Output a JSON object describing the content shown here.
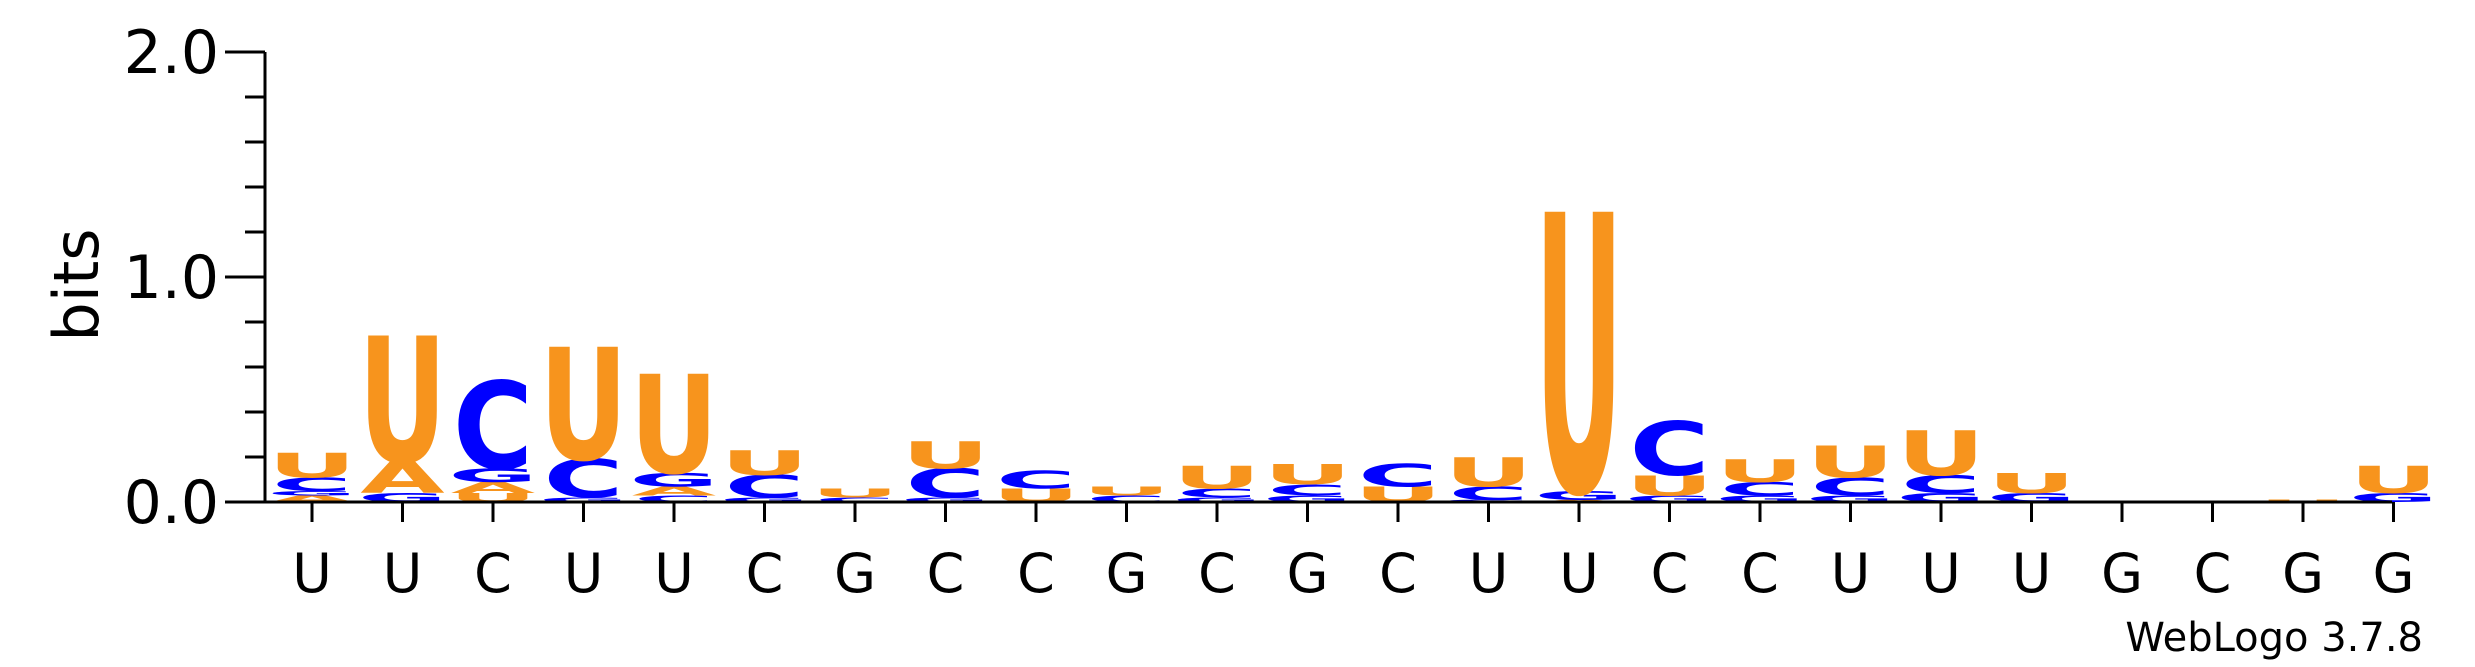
{
  "chart_data": {
    "type": "sequence-logo",
    "ylabel": "bits",
    "ylim": [
      0,
      2.0
    ],
    "yticks": [
      "0.0",
      "1.0",
      "2.0"
    ],
    "x_labels": [
      "U",
      "U",
      "C",
      "U",
      "U",
      "C",
      "G",
      "C",
      "C",
      "G",
      "C",
      "G",
      "C",
      "U",
      "U",
      "C",
      "C",
      "U",
      "U",
      "U",
      "G",
      "C",
      "G",
      "G"
    ],
    "footer": "WebLogo 3.7.8",
    "colors": {
      "U": "#f7941d",
      "A": "#f7941d",
      "C": "#0000ff",
      "G": "#0000ff"
    },
    "stacks": [
      [
        {
          "l": "A",
          "h": 0.03
        },
        {
          "l": "G",
          "h": 0.02
        },
        {
          "l": "C",
          "h": 0.06
        },
        {
          "l": "U",
          "h": 0.11
        }
      ],
      [
        {
          "l": "G",
          "h": 0.04
        },
        {
          "l": "A",
          "h": 0.14
        },
        {
          "l": "U",
          "h": 0.56
        }
      ],
      [
        {
          "l": "U",
          "h": 0.04
        },
        {
          "l": "A",
          "h": 0.05
        },
        {
          "l": "G",
          "h": 0.06
        },
        {
          "l": "C",
          "h": 0.39
        }
      ],
      [
        {
          "l": "G",
          "h": 0.02
        },
        {
          "l": "C",
          "h": 0.17
        },
        {
          "l": "U",
          "h": 0.5
        }
      ],
      [
        {
          "l": "C",
          "h": 0.03
        },
        {
          "l": "A",
          "h": 0.04
        },
        {
          "l": "G",
          "h": 0.06
        },
        {
          "l": "U",
          "h": 0.44
        }
      ],
      [
        {
          "l": "G",
          "h": 0.02
        },
        {
          "l": "C",
          "h": 0.1
        },
        {
          "l": "U",
          "h": 0.11
        }
      ],
      [
        {
          "l": "C",
          "h": 0.02
        },
        {
          "l": "U",
          "h": 0.04
        }
      ],
      [
        {
          "l": "G",
          "h": 0.02
        },
        {
          "l": "C",
          "h": 0.13
        },
        {
          "l": "U",
          "h": 0.12
        }
      ],
      [
        {
          "l": "U",
          "h": 0.06
        },
        {
          "l": "C",
          "h": 0.08
        }
      ],
      [
        {
          "l": "C",
          "h": 0.03
        },
        {
          "l": "U",
          "h": 0.04
        }
      ],
      [
        {
          "l": "G",
          "h": 0.02
        },
        {
          "l": "C",
          "h": 0.04
        },
        {
          "l": "U",
          "h": 0.1
        }
      ],
      [
        {
          "l": "G",
          "h": 0.03
        },
        {
          "l": "C",
          "h": 0.05
        },
        {
          "l": "U",
          "h": 0.09
        }
      ],
      [
        {
          "l": "U",
          "h": 0.07
        },
        {
          "l": "C",
          "h": 0.1
        }
      ],
      [
        {
          "l": "G",
          "h": 0.01
        },
        {
          "l": "C",
          "h": 0.06
        },
        {
          "l": "U",
          "h": 0.13
        }
      ],
      [
        {
          "l": "A",
          "h": 0.01
        },
        {
          "l": "G",
          "h": 0.04
        },
        {
          "l": "U",
          "h": 1.24
        }
      ],
      [
        {
          "l": "G",
          "h": 0.03
        },
        {
          "l": "U",
          "h": 0.09
        },
        {
          "l": "C",
          "h": 0.24
        }
      ],
      [
        {
          "l": "G",
          "h": 0.03
        },
        {
          "l": "C",
          "h": 0.06
        },
        {
          "l": "U",
          "h": 0.1
        }
      ],
      [
        {
          "l": "G",
          "h": 0.03
        },
        {
          "l": "C",
          "h": 0.08
        },
        {
          "l": "U",
          "h": 0.14
        }
      ],
      [
        {
          "l": "G",
          "h": 0.04
        },
        {
          "l": "C",
          "h": 0.08
        },
        {
          "l": "U",
          "h": 0.2
        }
      ],
      [
        {
          "l": "G",
          "h": 0.04
        },
        {
          "l": "U",
          "h": 0.09
        }
      ],
      [],
      [],
      [
        {
          "l": "U",
          "h": 0.01
        }
      ],
      [
        {
          "l": "G",
          "h": 0.04
        },
        {
          "l": "U",
          "h": 0.12
        }
      ]
    ]
  }
}
